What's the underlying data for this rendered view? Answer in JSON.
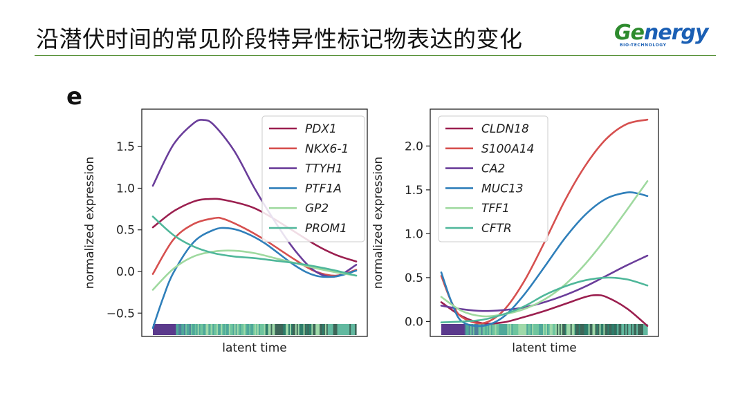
{
  "slide": {
    "title": "沿潜伏时间的常见阶段特异性标记物表达的变化",
    "logo": {
      "brand": "Genergy",
      "brand_lead": "Ge",
      "brand_rest": "nergy",
      "subtitle": "BIO-TECHNOLOGY"
    },
    "panel_label": "e"
  },
  "colors": {
    "accent_rule": "#4d8a2c",
    "timebar": [
      "#5b3a8c",
      "#4f7f9a",
      "#4fa89a",
      "#6fc59f",
      "#9fd9a9",
      "#2e7d6b",
      "#3e6659",
      "#62b9a0"
    ]
  },
  "chart_data": [
    {
      "type": "line",
      "xlabel": "latent time",
      "ylabel": "normalized expression",
      "xlim": [
        0,
        1
      ],
      "ylim": [
        -0.78,
        1.95
      ],
      "yticks": [
        -0.5,
        0.0,
        0.5,
        1.0,
        1.5
      ],
      "ytick_labels": [
        "−0.5",
        "0.0",
        "0.5",
        "1.0",
        "1.5"
      ],
      "legend_position": "top-right",
      "grid": false,
      "series": [
        {
          "name": "PDX1",
          "color": "#9b1f4f",
          "x": [
            0,
            0.1,
            0.2,
            0.27,
            0.35,
            0.5,
            0.65,
            0.8,
            0.9,
            1.0
          ],
          "y": [
            0.53,
            0.72,
            0.84,
            0.87,
            0.86,
            0.76,
            0.55,
            0.32,
            0.2,
            0.12
          ]
        },
        {
          "name": "NKX6-1",
          "color": "#d6504f",
          "x": [
            0,
            0.1,
            0.2,
            0.3,
            0.35,
            0.45,
            0.55,
            0.7,
            0.8,
            0.9,
            1.0
          ],
          "y": [
            -0.03,
            0.38,
            0.57,
            0.64,
            0.63,
            0.52,
            0.38,
            0.14,
            0.0,
            -0.05,
            0.02
          ]
        },
        {
          "name": "TTYH1",
          "color": "#6a3d9a",
          "x": [
            0,
            0.1,
            0.2,
            0.25,
            0.3,
            0.4,
            0.5,
            0.6,
            0.7,
            0.8,
            0.9,
            1.0
          ],
          "y": [
            1.03,
            1.52,
            1.78,
            1.82,
            1.76,
            1.45,
            1.0,
            0.6,
            0.25,
            0.0,
            -0.06,
            0.08
          ]
        },
        {
          "name": "PTF1A",
          "color": "#2f7fba",
          "x": [
            0,
            0.05,
            0.1,
            0.2,
            0.3,
            0.37,
            0.45,
            0.55,
            0.7,
            0.8,
            0.9,
            1.0
          ],
          "y": [
            -0.68,
            -0.32,
            -0.02,
            0.35,
            0.5,
            0.52,
            0.47,
            0.34,
            0.07,
            -0.05,
            -0.06,
            0.01
          ]
        },
        {
          "name": "GP2",
          "color": "#9fd99f",
          "x": [
            0,
            0.1,
            0.2,
            0.3,
            0.4,
            0.5,
            0.6,
            0.7,
            0.8,
            0.9,
            1.0
          ],
          "y": [
            -0.22,
            0.03,
            0.18,
            0.24,
            0.25,
            0.22,
            0.16,
            0.1,
            0.04,
            -0.01,
            -0.05
          ]
        },
        {
          "name": "PROM1",
          "color": "#4fb79a",
          "x": [
            0,
            0.1,
            0.2,
            0.3,
            0.4,
            0.5,
            0.6,
            0.7,
            0.8,
            0.9,
            1.0
          ],
          "y": [
            0.66,
            0.44,
            0.3,
            0.22,
            0.18,
            0.16,
            0.13,
            0.1,
            0.06,
            0.01,
            -0.05
          ]
        }
      ]
    },
    {
      "type": "line",
      "xlabel": "latent time",
      "ylabel": "normalized expression",
      "xlim": [
        0,
        1
      ],
      "ylim": [
        -0.17,
        2.42
      ],
      "yticks": [
        0.0,
        0.5,
        1.0,
        1.5,
        2.0
      ],
      "ytick_labels": [
        "0.0",
        "0.5",
        "1.0",
        "1.5",
        "2.0"
      ],
      "legend_position": "top-left",
      "grid": false,
      "series": [
        {
          "name": "CLDN18",
          "color": "#9b1f4f",
          "x": [
            0,
            0.1,
            0.2,
            0.3,
            0.4,
            0.5,
            0.6,
            0.7,
            0.75,
            0.8,
            0.9,
            1.0
          ],
          "y": [
            0.22,
            0.06,
            -0.02,
            -0.01,
            0.05,
            0.12,
            0.2,
            0.28,
            0.3,
            0.28,
            0.15,
            -0.05
          ]
        },
        {
          "name": "S100A14",
          "color": "#d6504f",
          "x": [
            0,
            0.05,
            0.1,
            0.2,
            0.3,
            0.4,
            0.5,
            0.6,
            0.7,
            0.8,
            0.9,
            1.0
          ],
          "y": [
            0.52,
            0.22,
            0.05,
            -0.02,
            0.12,
            0.45,
            0.9,
            1.38,
            1.78,
            2.08,
            2.25,
            2.3
          ]
        },
        {
          "name": "CA2",
          "color": "#6a3d9a",
          "x": [
            0,
            0.1,
            0.2,
            0.3,
            0.4,
            0.5,
            0.6,
            0.7,
            0.8,
            0.9,
            1.0
          ],
          "y": [
            0.18,
            0.14,
            0.12,
            0.13,
            0.16,
            0.22,
            0.3,
            0.4,
            0.52,
            0.64,
            0.75
          ]
        },
        {
          "name": "MUC13",
          "color": "#2f7fba",
          "x": [
            0,
            0.05,
            0.1,
            0.2,
            0.3,
            0.4,
            0.5,
            0.6,
            0.7,
            0.8,
            0.9,
            0.95,
            1.0
          ],
          "y": [
            0.56,
            0.22,
            0.0,
            -0.05,
            0.05,
            0.3,
            0.62,
            0.95,
            1.22,
            1.4,
            1.47,
            1.46,
            1.43
          ]
        },
        {
          "name": "TFF1",
          "color": "#9fd99f",
          "x": [
            0,
            0.1,
            0.2,
            0.3,
            0.4,
            0.5,
            0.6,
            0.7,
            0.8,
            0.9,
            1.0
          ],
          "y": [
            0.28,
            0.12,
            0.06,
            0.08,
            0.14,
            0.25,
            0.42,
            0.66,
            0.95,
            1.27,
            1.6
          ]
        },
        {
          "name": "CFTR",
          "color": "#4fb79a",
          "x": [
            0,
            0.1,
            0.2,
            0.3,
            0.4,
            0.5,
            0.6,
            0.7,
            0.8,
            0.9,
            1.0
          ],
          "y": [
            -0.01,
            0.0,
            0.02,
            0.08,
            0.17,
            0.3,
            0.4,
            0.47,
            0.5,
            0.48,
            0.41
          ]
        }
      ]
    }
  ]
}
